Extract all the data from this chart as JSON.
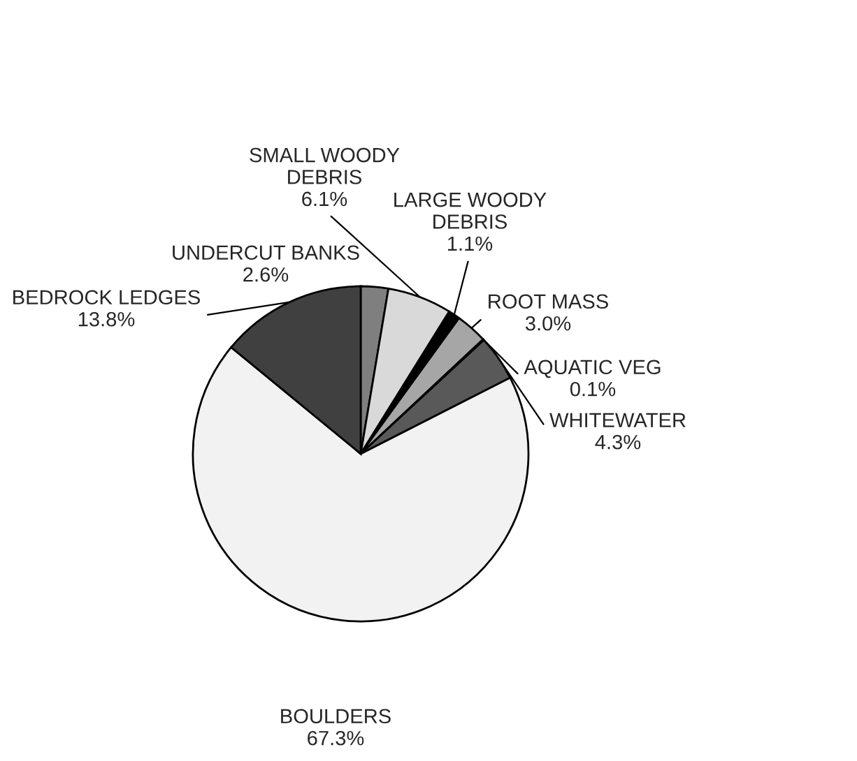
{
  "chart_data": {
    "type": "pie",
    "categories": [
      "UNDERCUT BANKS",
      "SMALL WOODY\nDEBRIS",
      "LARGE WOODY\nDEBRIS",
      "ROOT MASS",
      "AQUATIC VEG",
      "WHITEWATER",
      "BOULDERS",
      "BEDROCK LEDGES"
    ],
    "values": [
      2.6,
      6.1,
      1.1,
      3.0,
      0.1,
      4.3,
      67.3,
      13.8
    ],
    "value_labels": [
      "2.6%",
      "6.1%",
      "1.1%",
      "3.0%",
      "0.1%",
      "4.3%",
      "67.3%",
      "13.8%"
    ],
    "colors": [
      "#7f7f7f",
      "#d9d9d9",
      "#000000",
      "#a6a6a6",
      "#ffffff",
      "#595959",
      "#f2f2f2",
      "#404040"
    ],
    "legend": false
  }
}
